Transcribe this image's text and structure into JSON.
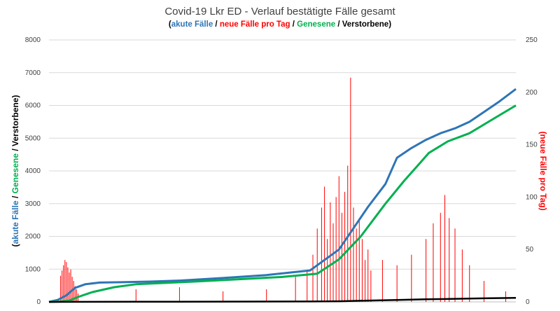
{
  "chart_data": {
    "type": "line",
    "title": "Covid-19 Lkr ED - Verlauf bestätigte Fälle gesamt",
    "subtitle_parts": [
      {
        "text": "(",
        "color": "#000000"
      },
      {
        "text": "akute Fälle",
        "color": "#2e75b6"
      },
      {
        "text": " / ",
        "color": "#000000"
      },
      {
        "text": "neue Fälle pro Tag",
        "color": "#ff0000"
      },
      {
        "text": " / ",
        "color": "#000000"
      },
      {
        "text": "Genesene",
        "color": "#00b050"
      },
      {
        "text": " / ",
        "color": "#000000"
      },
      {
        "text": "Verstorbene",
        "color": "#000000"
      },
      {
        "text": ")",
        "color": "#000000"
      }
    ],
    "ylabel_parts": [
      {
        "text": "(",
        "color": "#000000"
      },
      {
        "text": "akute Fälle",
        "color": "#2e75b6"
      },
      {
        "text": " / ",
        "color": "#000000"
      },
      {
        "text": "Genesene",
        "color": "#00b050"
      },
      {
        "text": " / Verstorbene)",
        "color": "#000000"
      }
    ],
    "y2label": "(neue Fälle pro Tag)",
    "y2label_color": "#ff0000",
    "ylim": [
      0,
      8000
    ],
    "y2lim": [
      0,
      250
    ],
    "yticks": [
      "0",
      "1000",
      "2000",
      "3000",
      "4000",
      "5000",
      "6000",
      "7000",
      "8000"
    ],
    "y2ticks": [
      "0",
      "50",
      "100",
      "150",
      "200",
      "250"
    ],
    "grid": true,
    "x_range": [
      0,
      322
    ],
    "series": [
      {
        "key": "akute",
        "color": "#2e75b6",
        "axis": "left",
        "x": [
          0,
          6,
          12,
          18,
          25,
          35,
          50,
          70,
          90,
          120,
          150,
          180,
          200,
          220,
          232,
          240,
          250,
          260,
          270,
          280,
          290,
          300,
          310,
          322
        ],
        "y": [
          0,
          60,
          200,
          430,
          540,
          590,
          600,
          620,
          650,
          730,
          820,
          960,
          1600,
          2900,
          3600,
          4400,
          4700,
          4950,
          5150,
          5300,
          5500,
          5800,
          6100,
          6500
        ]
      },
      {
        "key": "genesene",
        "color": "#00b050",
        "axis": "left",
        "x": [
          0,
          8,
          14,
          20,
          30,
          45,
          60,
          80,
          100,
          130,
          160,
          185,
          200,
          215,
          232,
          245,
          255,
          262,
          275,
          290,
          305,
          322
        ],
        "y": [
          0,
          10,
          40,
          150,
          300,
          450,
          540,
          580,
          620,
          690,
          760,
          860,
          1300,
          2000,
          3000,
          3700,
          4200,
          4550,
          4900,
          5150,
          5550,
          6000
        ]
      },
      {
        "key": "verstorbene",
        "color": "#000000",
        "axis": "left",
        "x": [
          0,
          60,
          120,
          180,
          200,
          220,
          240,
          260,
          280,
          300,
          322
        ],
        "y": [
          0,
          5,
          8,
          12,
          20,
          40,
          60,
          80,
          95,
          110,
          125
        ]
      },
      {
        "key": "neue_faelle_pro_tag",
        "type": "bar",
        "color": "#ff0000",
        "axis": "right",
        "spikes": [
          {
            "x": 8,
            "y": 25
          },
          {
            "x": 9,
            "y": 30
          },
          {
            "x": 10,
            "y": 35
          },
          {
            "x": 11,
            "y": 40
          },
          {
            "x": 12,
            "y": 38
          },
          {
            "x": 13,
            "y": 33
          },
          {
            "x": 14,
            "y": 28
          },
          {
            "x": 15,
            "y": 31
          },
          {
            "x": 16,
            "y": 24
          },
          {
            "x": 17,
            "y": 20
          },
          {
            "x": 18,
            "y": 15
          },
          {
            "x": 19,
            "y": 12
          },
          {
            "x": 20,
            "y": 8
          },
          {
            "x": 60,
            "y": 12
          },
          {
            "x": 90,
            "y": 14
          },
          {
            "x": 120,
            "y": 10
          },
          {
            "x": 150,
            "y": 12
          },
          {
            "x": 170,
            "y": 24
          },
          {
            "x": 178,
            "y": 30
          },
          {
            "x": 182,
            "y": 45
          },
          {
            "x": 185,
            "y": 70
          },
          {
            "x": 188,
            "y": 90
          },
          {
            "x": 190,
            "y": 110
          },
          {
            "x": 192,
            "y": 60
          },
          {
            "x": 194,
            "y": 95
          },
          {
            "x": 196,
            "y": 75
          },
          {
            "x": 198,
            "y": 100
          },
          {
            "x": 200,
            "y": 120
          },
          {
            "x": 202,
            "y": 85
          },
          {
            "x": 204,
            "y": 105
          },
          {
            "x": 206,
            "y": 130
          },
          {
            "x": 208,
            "y": 214
          },
          {
            "x": 210,
            "y": 90
          },
          {
            "x": 212,
            "y": 70
          },
          {
            "x": 214,
            "y": 80
          },
          {
            "x": 216,
            "y": 60
          },
          {
            "x": 218,
            "y": 40
          },
          {
            "x": 220,
            "y": 50
          },
          {
            "x": 222,
            "y": 30
          },
          {
            "x": 230,
            "y": 40
          },
          {
            "x": 240,
            "y": 35
          },
          {
            "x": 250,
            "y": 45
          },
          {
            "x": 260,
            "y": 60
          },
          {
            "x": 265,
            "y": 75
          },
          {
            "x": 270,
            "y": 85
          },
          {
            "x": 273,
            "y": 102
          },
          {
            "x": 276,
            "y": 80
          },
          {
            "x": 280,
            "y": 70
          },
          {
            "x": 285,
            "y": 50
          },
          {
            "x": 290,
            "y": 35
          },
          {
            "x": 300,
            "y": 20
          },
          {
            "x": 315,
            "y": 10
          }
        ]
      }
    ]
  }
}
